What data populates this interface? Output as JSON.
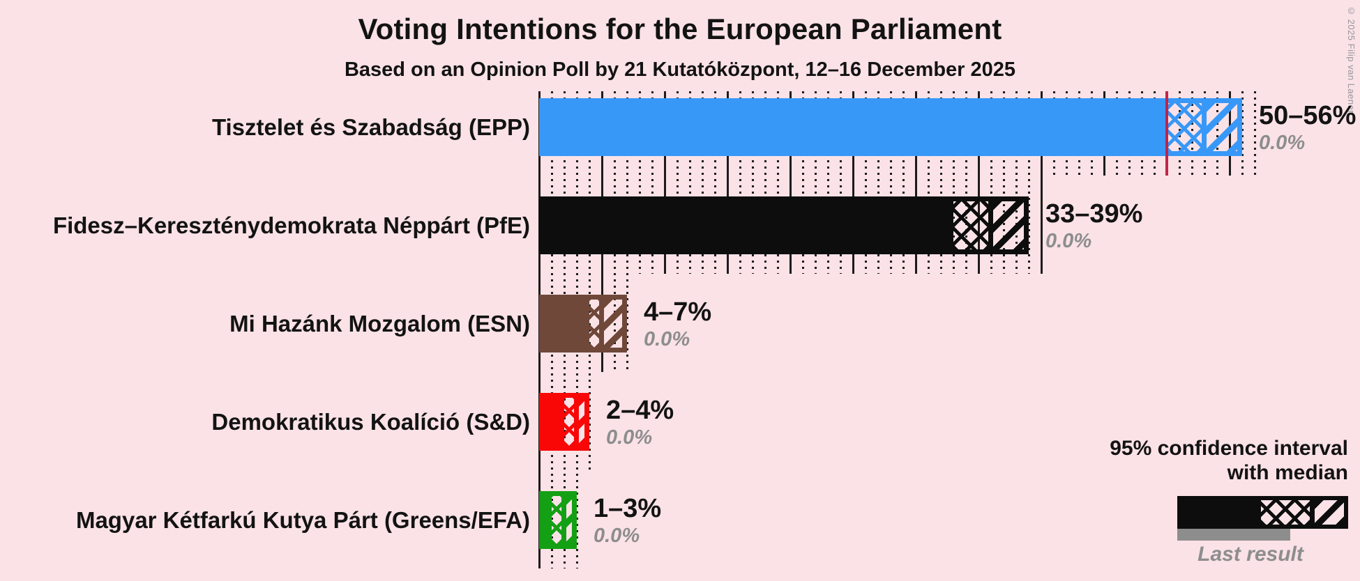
{
  "chart_data": {
    "type": "bar",
    "title": "Voting Intentions for the European Parliament",
    "subtitle": "Based on an Opinion Poll by 21 Kutatóközpont, 12–16 December 2025",
    "x_axis": {
      "unit": "%",
      "min": 0,
      "max": 57,
      "major_grid_step": 5,
      "minor_grid_step": 1,
      "majority_line": 50
    },
    "series": [
      {
        "party": "Tisztelet és Szabadság (EPP)",
        "color": "#3898f8",
        "ci_low": 50,
        "median": 53,
        "ci_high": 56,
        "range_label": "50–56%",
        "last_result": 0.0,
        "last_result_label": "0.0%"
      },
      {
        "party": "Fidesz–Kereszténydemokrata Néppárt (PfE)",
        "color": "#0d0d0d",
        "ci_low": 33,
        "median": 36,
        "ci_high": 39,
        "range_label": "33–39%",
        "last_result": 0.0,
        "last_result_label": "0.0%"
      },
      {
        "party": "Mi Hazánk Mozgalom (ESN)",
        "color": "#6f4839",
        "ci_low": 4,
        "median": 5,
        "ci_high": 7,
        "range_label": "4–7%",
        "last_result": 0.0,
        "last_result_label": "0.0%"
      },
      {
        "party": "Demokratikus Koalíció (S&D)",
        "color": "#f90707",
        "ci_low": 2,
        "median": 3,
        "ci_high": 4,
        "range_label": "2–4%",
        "last_result": 0.0,
        "last_result_label": "0.0%"
      },
      {
        "party": "Magyar Kétfarkú Kutya Párt (Greens/EFA)",
        "color": "#14a014",
        "ci_low": 1,
        "median": 2,
        "ci_high": 3,
        "range_label": "1–3%",
        "last_result": 0.0,
        "last_result_label": "0.0%"
      }
    ],
    "legend": {
      "ci_line1": "95% confidence interval",
      "ci_line2": "with median",
      "last_result": "Last result",
      "sample_color": "#0d0d0d",
      "last_result_color": "#8d8d8d"
    },
    "copyright": "© 2025 Filip van Laenen",
    "colors": {
      "background": "#fae2e7",
      "majority_line": "#c02448",
      "grid": "#1c1c1c",
      "text": "#131313",
      "muted": "#8d8d8d"
    }
  }
}
